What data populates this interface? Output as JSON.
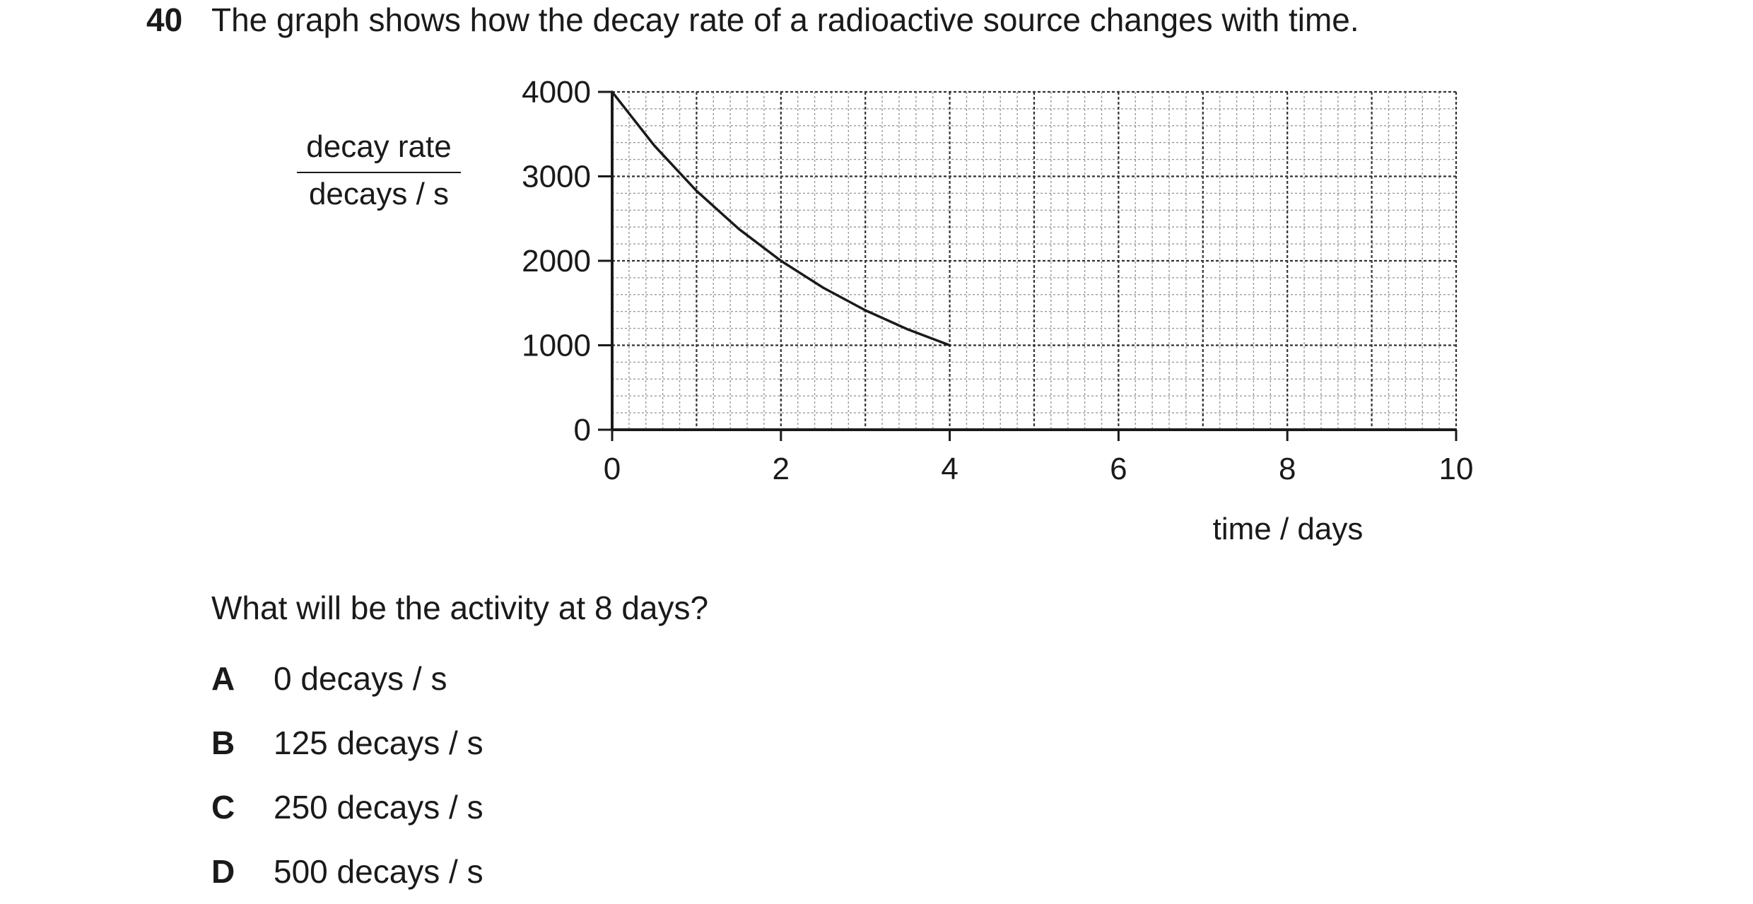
{
  "question": {
    "number": "40",
    "stem": "The graph shows how the decay rate of a radioactive source changes with time.",
    "prompt": "What will be the activity at 8 days?",
    "options": [
      {
        "letter": "A",
        "text": "0 decays / s"
      },
      {
        "letter": "B",
        "text": "125 decays / s"
      },
      {
        "letter": "C",
        "text": "250 decays / s"
      },
      {
        "letter": "D",
        "text": "500 decays / s"
      }
    ]
  },
  "chart_data": {
    "type": "line",
    "title": "",
    "xlabel": "time / days",
    "ylabel_top": "decay rate",
    "ylabel_bottom": "decays / s",
    "xlim": [
      0,
      10
    ],
    "ylim": [
      0,
      4000
    ],
    "xticks": [
      0,
      2,
      4,
      6,
      8,
      10
    ],
    "yticks": [
      0,
      1000,
      2000,
      3000,
      4000
    ],
    "grid": true,
    "series": [
      {
        "x": [
          0,
          0.5,
          1,
          1.5,
          2,
          2.5,
          3,
          3.5,
          4
        ],
        "y": [
          4000,
          3364,
          2828,
          2378,
          2000,
          1682,
          1414,
          1189,
          1000
        ],
        "color": "#1a1a1a"
      }
    ]
  }
}
